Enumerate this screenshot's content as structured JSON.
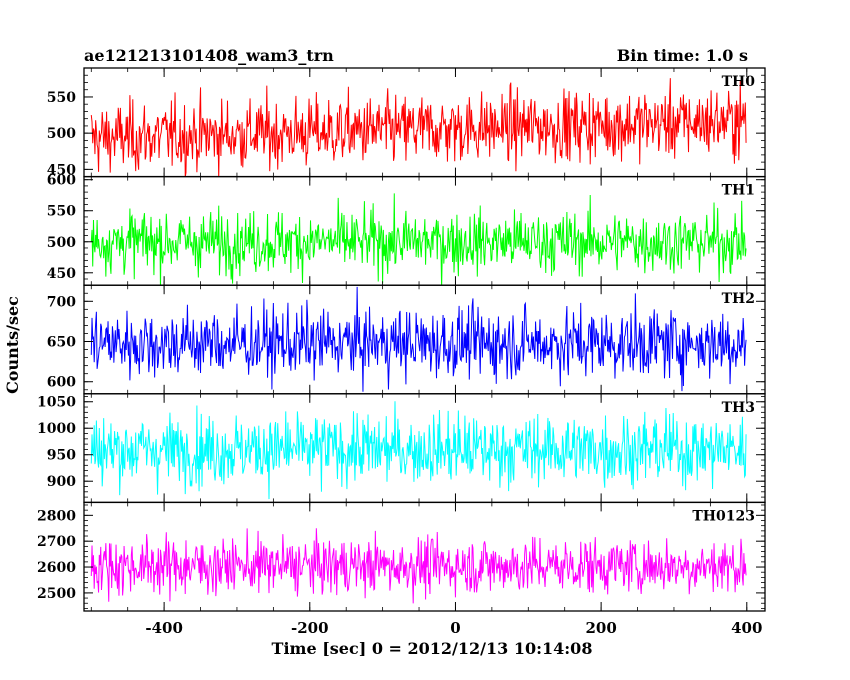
{
  "header": {
    "left": "ae121213101408_wam3_trn",
    "right": "Bin time: 1.0 s"
  },
  "chart_data": {
    "type": "line",
    "title": "ae121213101408_wam3_trn",
    "bin_time": "Bin time: 1.0 s",
    "xlabel": "Time [sec] 0 = 2012/12/13 10:14:08",
    "ylabel": "Counts/sec",
    "xlim": [
      -510,
      425
    ],
    "x_ticks": [
      -400,
      -200,
      0,
      200,
      400
    ],
    "x_range": [
      -500,
      399
    ],
    "grid": false,
    "panels": [
      {
        "name": "TH0",
        "color": "#ff0000",
        "ylim": [
          440,
          590
        ],
        "y_ticks": [
          450,
          500,
          550
        ],
        "mean": 505,
        "noise": 32,
        "trend": 12
      },
      {
        "name": "TH1",
        "color": "#00ff00",
        "ylim": [
          430,
          605
        ],
        "y_ticks": [
          450,
          500,
          550,
          600
        ],
        "mean": 500,
        "noise": 33,
        "trend": 0
      },
      {
        "name": "TH2",
        "color": "#0000ff",
        "ylim": [
          585,
          720
        ],
        "y_ticks": [
          600,
          650,
          700
        ],
        "mean": 648,
        "noise": 29,
        "trend": 0
      },
      {
        "name": "TH3",
        "color": "#00ffff",
        "ylim": [
          860,
          1065
        ],
        "y_ticks": [
          900,
          950,
          1000,
          1050
        ],
        "mean": 960,
        "noise": 44,
        "trend": 0
      },
      {
        "name": "TH0123",
        "color": "#ff00ff",
        "ylim": [
          2430,
          2850
        ],
        "y_ticks": [
          2500,
          2600,
          2700,
          2800
        ],
        "mean": 2605,
        "noise": 72,
        "trend": 0
      }
    ]
  }
}
